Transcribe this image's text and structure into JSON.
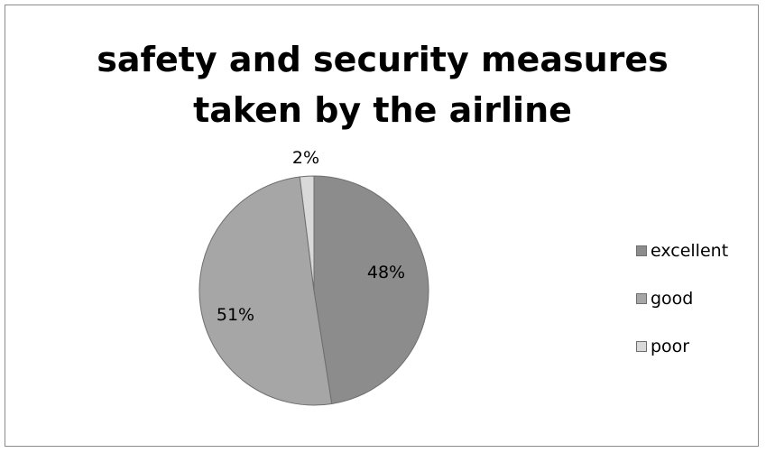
{
  "chart_data": {
    "type": "pie",
    "title": "safety and security measures taken by the airline",
    "title_lines": [
      "safety and security measures",
      "taken by the airline"
    ],
    "categories": [
      "excellent",
      "good",
      "poor"
    ],
    "values": [
      48,
      51,
      2
    ],
    "data_labels": [
      "48%",
      "51%",
      "2%"
    ],
    "colors": [
      "#8c8c8c",
      "#a6a6a6",
      "#d9d9d9"
    ],
    "legend_position": "right"
  }
}
